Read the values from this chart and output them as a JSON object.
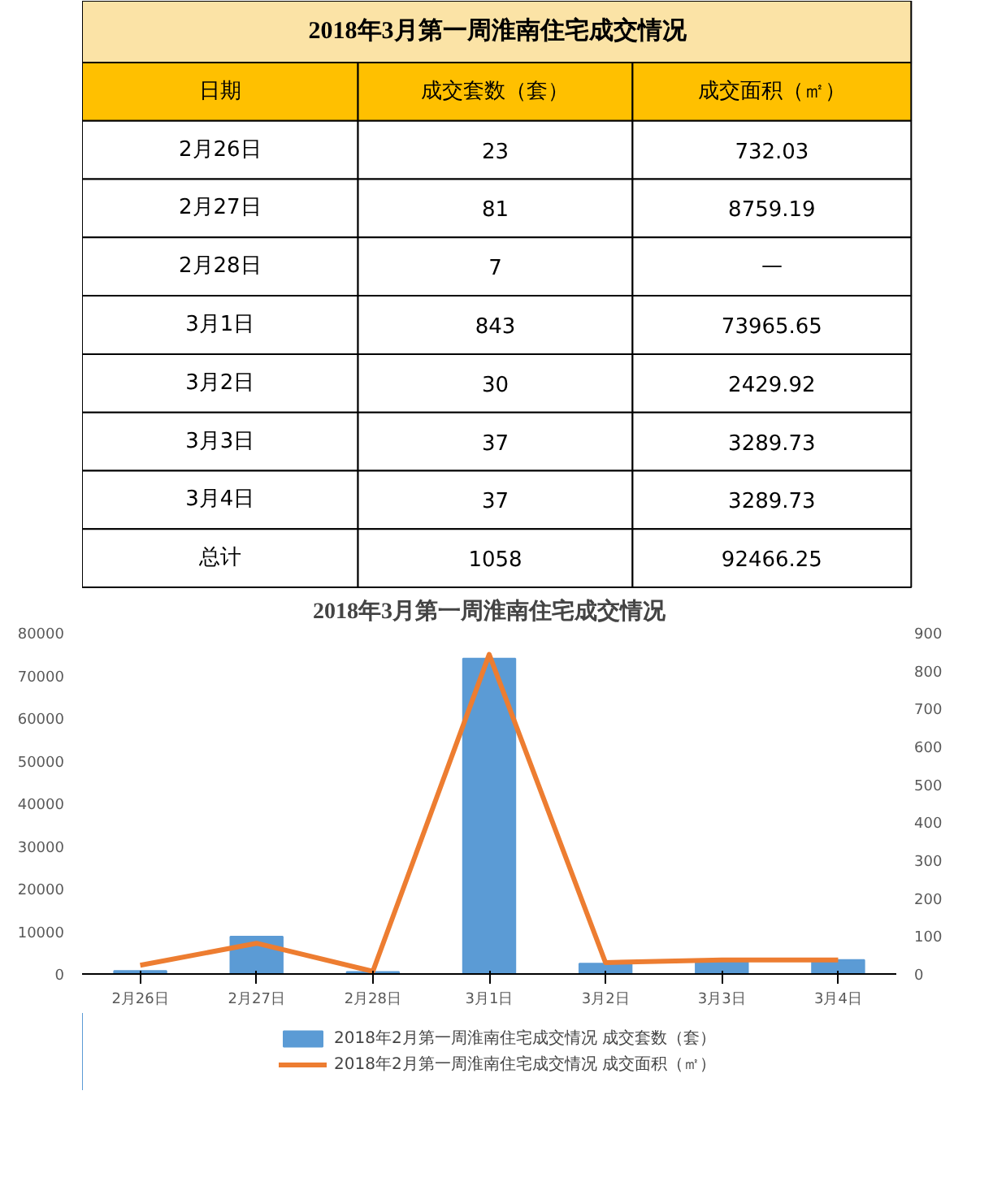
{
  "chart_data": {
    "type": "bar",
    "title": "2018年3月第一周淮南住宅成交情况",
    "categories": [
      "2月26日",
      "2月27日",
      "2月28日",
      "3月1日",
      "3月2日",
      "3月3日",
      "3月4日"
    ],
    "series": [
      {
        "name": "2018年2月第一周淮南住宅成交情况 成交套数（套）",
        "color": "#5b9bd5",
        "values": [
          732.03,
          8759.19,
          500,
          73965.65,
          2429.92,
          3289.73,
          3289.73
        ]
      },
      {
        "name": "2018年2月第一周淮南住宅成交情况 成交面积（㎡）",
        "type": "line",
        "axis": "y2",
        "color": "#ed7d31",
        "values": [
          23,
          81,
          7,
          843,
          30,
          37,
          37
        ]
      }
    ],
    "ylim": [
      0,
      80000
    ],
    "yticks": [
      0,
      10000,
      20000,
      30000,
      40000,
      50000,
      60000,
      70000,
      80000
    ],
    "y2lim": [
      0,
      900
    ],
    "y2ticks": [
      0,
      100,
      200,
      300,
      400,
      500,
      600,
      700,
      800,
      900
    ],
    "grid": false,
    "legend": "bottom",
    "annotations": [
      "日期",
      "成交套数（套）",
      "成交面积（㎡）",
      "23",
      "732.03",
      "81",
      "8759.19",
      "7",
      "—",
      "843",
      "73965.65",
      "30",
      "2429.92",
      "37",
      "3289.73",
      "37",
      "3289.73",
      "总计",
      "1058",
      "92466.25"
    ]
  }
}
